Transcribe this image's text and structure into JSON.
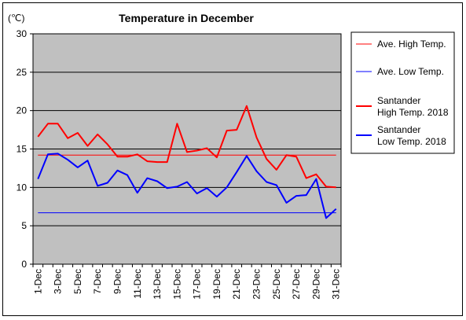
{
  "chart_data": {
    "type": "line",
    "title": "Temperature in December",
    "unit_label": "(℃)",
    "ylim": [
      0,
      30
    ],
    "yticks": [
      0,
      5,
      10,
      15,
      20,
      25,
      30
    ],
    "grid": true,
    "legend_position": "right",
    "x": [
      "1-Dec",
      "2-Dec",
      "3-Dec",
      "4-Dec",
      "5-Dec",
      "6-Dec",
      "7-Dec",
      "8-Dec",
      "9-Dec",
      "10-Dec",
      "11-Dec",
      "12-Dec",
      "13-Dec",
      "14-Dec",
      "15-Dec",
      "16-Dec",
      "17-Dec",
      "18-Dec",
      "19-Dec",
      "20-Dec",
      "21-Dec",
      "22-Dec",
      "23-Dec",
      "24-Dec",
      "25-Dec",
      "26-Dec",
      "27-Dec",
      "28-Dec",
      "29-Dec",
      "30-Dec",
      "31-Dec"
    ],
    "xtick_labels": [
      "1-Dec",
      "3-Dec",
      "5-Dec",
      "7-Dec",
      "9-Dec",
      "11-Dec",
      "13-Dec",
      "15-Dec",
      "17-Dec",
      "19-Dec",
      "21-Dec",
      "23-Dec",
      "25-Dec",
      "27-Dec",
      "29-Dec",
      "31-Dec"
    ],
    "series": [
      {
        "name": "Ave. High Temp.",
        "color": "#ff0000",
        "style": "thin",
        "values": [
          14.2,
          14.2,
          14.2,
          14.2,
          14.2,
          14.2,
          14.2,
          14.2,
          14.2,
          14.2,
          14.2,
          14.2,
          14.2,
          14.2,
          14.2,
          14.2,
          14.2,
          14.2,
          14.2,
          14.2,
          14.2,
          14.2,
          14.2,
          14.2,
          14.2,
          14.2,
          14.2,
          14.2,
          14.2,
          14.2,
          14.2
        ]
      },
      {
        "name": "Ave. Low Temp.",
        "color": "#0000ff",
        "style": "thin",
        "values": [
          6.7,
          6.7,
          6.7,
          6.7,
          6.7,
          6.7,
          6.7,
          6.7,
          6.7,
          6.7,
          6.7,
          6.7,
          6.7,
          6.7,
          6.7,
          6.7,
          6.7,
          6.7,
          6.7,
          6.7,
          6.7,
          6.7,
          6.7,
          6.7,
          6.7,
          6.7,
          6.7,
          6.7,
          6.7,
          6.7,
          6.7
        ]
      },
      {
        "name": "Santander High Temp. 2018",
        "color": "#ff0000",
        "style": "thick",
        "values": [
          16.6,
          18.3,
          18.3,
          16.4,
          17.1,
          15.4,
          16.9,
          15.6,
          14.0,
          14.0,
          14.3,
          13.4,
          13.3,
          13.3,
          18.3,
          14.6,
          14.8,
          15.1,
          13.9,
          17.4,
          17.5,
          20.6,
          16.5,
          13.7,
          12.3,
          14.2,
          14.0,
          11.2,
          11.7,
          10.1,
          10.0
        ]
      },
      {
        "name": "Santander Low Temp. 2018",
        "color": "#0000ff",
        "style": "thick",
        "values": [
          11.1,
          14.3,
          14.4,
          13.6,
          12.6,
          13.5,
          10.2,
          10.6,
          12.2,
          11.6,
          9.3,
          11.2,
          10.8,
          9.9,
          10.1,
          10.7,
          9.2,
          9.9,
          8.8,
          10.0,
          12.0,
          14.1,
          12.1,
          10.7,
          10.3,
          8.0,
          8.9,
          9.0,
          11.1,
          6.0,
          7.2
        ]
      }
    ],
    "legend_entries": [
      {
        "line1": "Ave. High Temp.",
        "line2": "",
        "color": "#ff0000",
        "style": "thin"
      },
      {
        "line1": "Ave. Low Temp.",
        "line2": "",
        "color": "#0000ff",
        "style": "thin"
      },
      {
        "line1": "Santander",
        "line2": "High Temp. 2018",
        "color": "#ff0000",
        "style": "thick"
      },
      {
        "line1": "Santander",
        "line2": "Low Temp. 2018",
        "color": "#0000ff",
        "style": "thick"
      }
    ]
  }
}
